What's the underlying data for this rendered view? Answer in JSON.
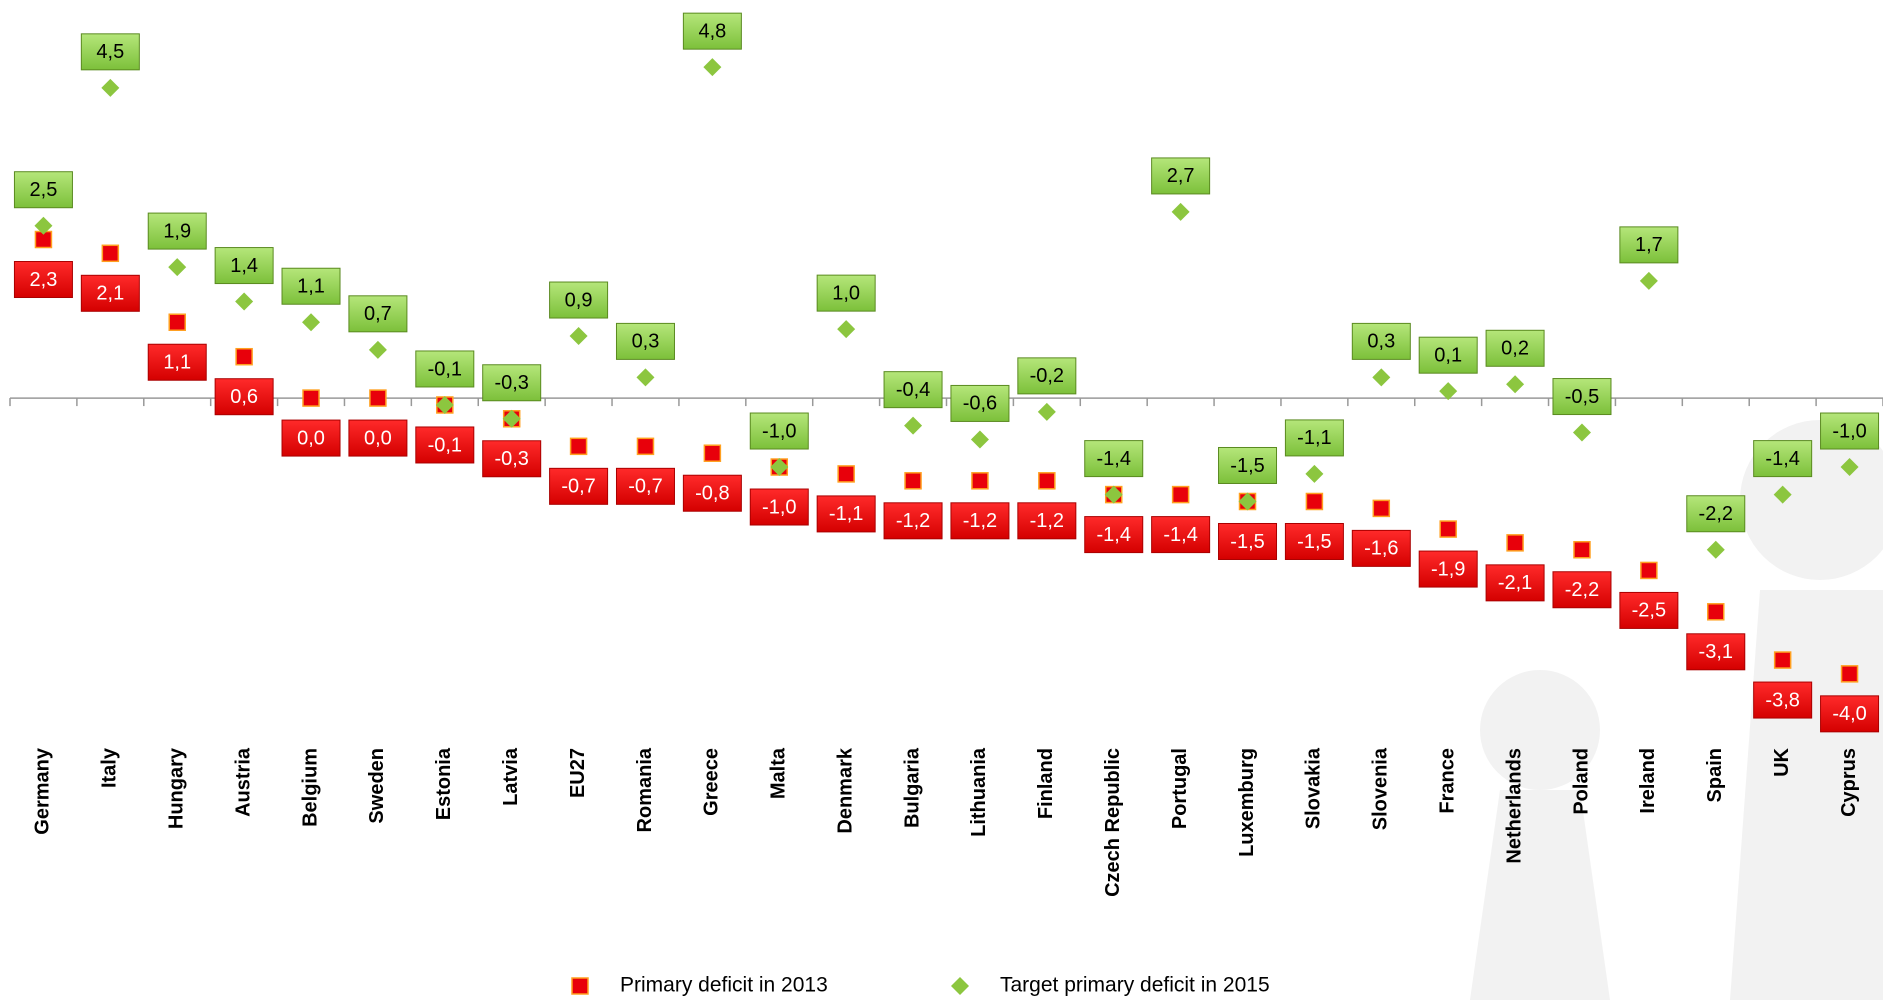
{
  "chart_data": {
    "type": "dot",
    "categories": [
      "Germany",
      "Italy",
      "Hungary",
      "Austria",
      "Belgium",
      "Sweden",
      "Estonia",
      "Latvia",
      "EU27",
      "Romania",
      "Greece",
      "Malta",
      "Denmark",
      "Bulgaria",
      "Lithuania",
      "Finland",
      "Czech Republic",
      "Portugal",
      "Luxemburg",
      "Slovakia",
      "Slovenia",
      "France",
      "Netherlands",
      "Poland",
      "Ireland",
      "Spain",
      "UK",
      "Cyprus"
    ],
    "series": [
      {
        "name": "Primary deficit in 2013",
        "color": "#e8000b",
        "marker": "square",
        "values": [
          2.3,
          2.1,
          1.1,
          0.6,
          0.0,
          0.0,
          -0.1,
          -0.3,
          -0.7,
          -0.7,
          -0.8,
          -1.0,
          -1.1,
          -1.2,
          -1.2,
          -1.2,
          -1.4,
          -1.4,
          -1.5,
          -1.5,
          -1.6,
          -1.9,
          -2.1,
          -2.2,
          -2.5,
          -3.1,
          -3.8,
          -4.0
        ],
        "value_labels": [
          "2,3",
          "2,1",
          "1,1",
          "0,6",
          "0,0",
          "0,0",
          "-0,1",
          "-0,3",
          "-0,7",
          "-0,7",
          "-0,8",
          "-1,0",
          "-1,1",
          "-1,2",
          "-1,2",
          "-1,2",
          "-1,4",
          "-1,4",
          "-1,5",
          "-1,5",
          "-1,6",
          "-1,9",
          "-2,1",
          "-2,2",
          "-2,5",
          "-3,1",
          "-3,8",
          "-4,0"
        ]
      },
      {
        "name": "Target primary deficit in 2015",
        "color": "#8cc63f",
        "marker": "diamond",
        "values": [
          2.5,
          4.5,
          1.9,
          1.4,
          1.1,
          0.7,
          -0.1,
          -0.3,
          0.9,
          0.3,
          4.8,
          -1.0,
          1.0,
          -0.4,
          -0.6,
          -0.2,
          -1.4,
          2.7,
          -1.5,
          -1.1,
          0.3,
          0.1,
          0.2,
          -0.5,
          1.7,
          -2.2,
          -1.4,
          -1.0
        ],
        "value_labels": [
          "2,5",
          "4,5",
          "1,9",
          "1,4",
          "1,1",
          "0,7",
          "-0,1",
          "-0,3",
          "0,9",
          "0,3",
          "4,8",
          "-1,0",
          "1,0",
          "-0,4",
          "-0,6",
          "-0,2",
          "-1,4",
          "2,7",
          "-1,5",
          "-1,1",
          "0,3",
          "0,1",
          "0,2",
          "-0,5",
          "1,7",
          "-2,2",
          "-1,4",
          "-1,0"
        ]
      }
    ],
    "ylim": [
      -4.8,
      5.6
    ],
    "legend": "bottom"
  }
}
